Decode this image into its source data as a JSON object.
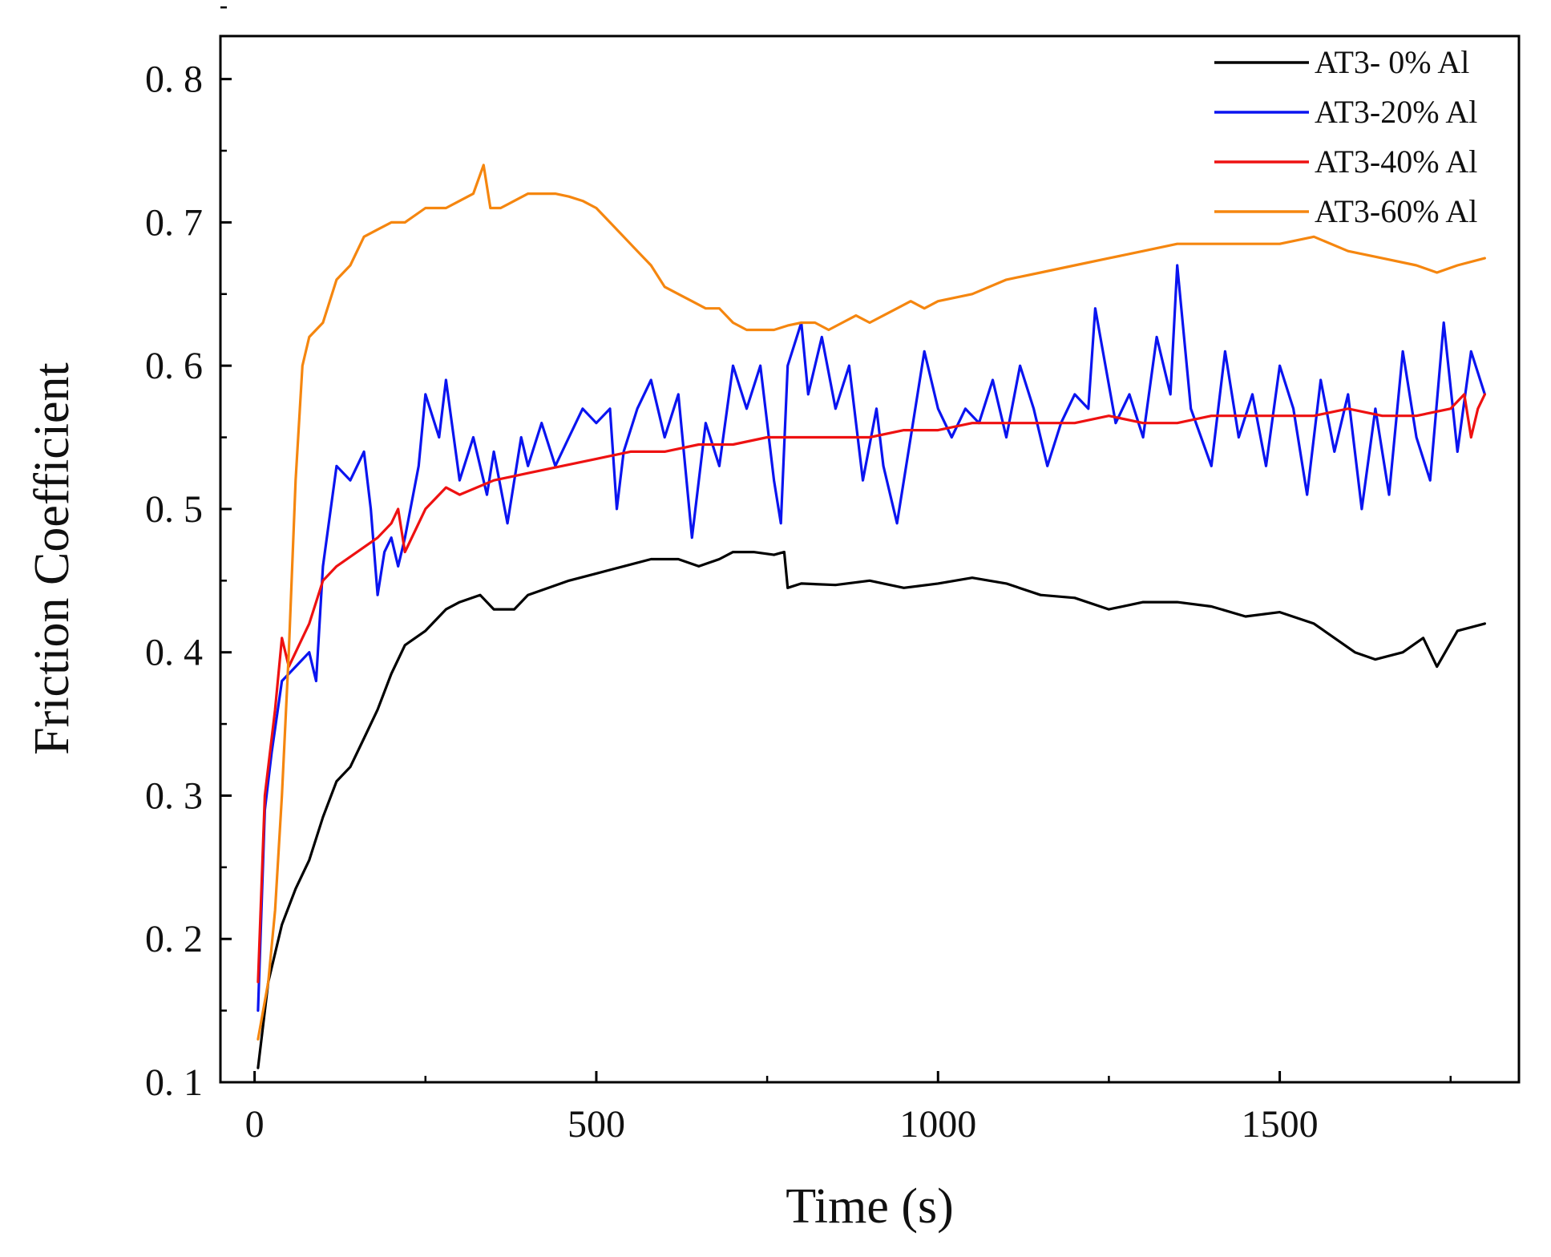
{
  "chart_data": {
    "type": "line",
    "title": "",
    "xlabel": "Time (s)",
    "ylabel": "Friction Coefficient",
    "xlim": [
      -50,
      1850
    ],
    "ylim": [
      0.1,
      0.83
    ],
    "xticks": [
      0,
      500,
      1000,
      1500
    ],
    "xtick_labels": [
      "0",
      "500",
      "1000",
      "1500"
    ],
    "yticks": [
      0.1,
      0.2,
      0.3,
      0.4,
      0.5,
      0.6,
      0.7,
      0.8
    ],
    "ytick_labels": [
      "0. 1",
      "0. 2",
      "0. 3",
      "0. 4",
      "0. 5",
      "0. 6",
      "0. 7",
      "0. 8"
    ],
    "grid": false,
    "legend_position": "top-right",
    "series": [
      {
        "name": "AT3- 0% Al",
        "color": "#000000",
        "x": [
          5,
          20,
          40,
          60,
          80,
          100,
          120,
          140,
          160,
          180,
          200,
          220,
          250,
          280,
          300,
          330,
          350,
          380,
          400,
          430,
          460,
          500,
          540,
          580,
          620,
          650,
          680,
          700,
          730,
          760,
          775,
          780,
          800,
          850,
          900,
          950,
          1000,
          1050,
          1100,
          1150,
          1200,
          1250,
          1300,
          1350,
          1400,
          1450,
          1500,
          1550,
          1580,
          1610,
          1640,
          1680,
          1710,
          1730,
          1760,
          1800
        ],
        "y": [
          0.11,
          0.17,
          0.21,
          0.235,
          0.255,
          0.285,
          0.31,
          0.32,
          0.34,
          0.36,
          0.385,
          0.405,
          0.415,
          0.43,
          0.435,
          0.44,
          0.43,
          0.43,
          0.44,
          0.445,
          0.45,
          0.455,
          0.46,
          0.465,
          0.465,
          0.46,
          0.465,
          0.47,
          0.47,
          0.468,
          0.47,
          0.445,
          0.448,
          0.447,
          0.45,
          0.445,
          0.448,
          0.452,
          0.448,
          0.44,
          0.438,
          0.43,
          0.435,
          0.435,
          0.432,
          0.425,
          0.428,
          0.42,
          0.41,
          0.4,
          0.395,
          0.4,
          0.41,
          0.39,
          0.415,
          0.42
        ]
      },
      {
        "name": "AT3-20% Al",
        "color": "#0a14f0",
        "x": [
          5,
          15,
          25,
          40,
          60,
          80,
          90,
          100,
          120,
          140,
          160,
          170,
          180,
          190,
          200,
          210,
          220,
          240,
          250,
          270,
          280,
          300,
          320,
          340,
          350,
          370,
          390,
          400,
          420,
          440,
          460,
          480,
          500,
          520,
          530,
          540,
          560,
          580,
          600,
          620,
          640,
          660,
          680,
          700,
          720,
          740,
          760,
          770,
          780,
          800,
          810,
          830,
          850,
          870,
          890,
          910,
          920,
          940,
          960,
          980,
          1000,
          1020,
          1040,
          1060,
          1080,
          1100,
          1120,
          1140,
          1160,
          1180,
          1200,
          1220,
          1230,
          1260,
          1280,
          1300,
          1320,
          1340,
          1350,
          1370,
          1400,
          1420,
          1440,
          1460,
          1480,
          1500,
          1520,
          1540,
          1560,
          1580,
          1600,
          1620,
          1640,
          1660,
          1680,
          1700,
          1720,
          1740,
          1760,
          1780,
          1800
        ],
        "y": [
          0.15,
          0.29,
          0.33,
          0.38,
          0.39,
          0.4,
          0.38,
          0.46,
          0.53,
          0.52,
          0.54,
          0.5,
          0.44,
          0.47,
          0.48,
          0.46,
          0.48,
          0.53,
          0.58,
          0.55,
          0.59,
          0.52,
          0.55,
          0.51,
          0.54,
          0.49,
          0.55,
          0.53,
          0.56,
          0.53,
          0.55,
          0.57,
          0.56,
          0.57,
          0.5,
          0.54,
          0.57,
          0.59,
          0.55,
          0.58,
          0.48,
          0.56,
          0.53,
          0.6,
          0.57,
          0.6,
          0.52,
          0.49,
          0.6,
          0.63,
          0.58,
          0.62,
          0.57,
          0.6,
          0.52,
          0.57,
          0.53,
          0.49,
          0.55,
          0.61,
          0.57,
          0.55,
          0.57,
          0.56,
          0.59,
          0.55,
          0.6,
          0.57,
          0.53,
          0.56,
          0.58,
          0.57,
          0.64,
          0.56,
          0.58,
          0.55,
          0.62,
          0.58,
          0.67,
          0.57,
          0.53,
          0.61,
          0.55,
          0.58,
          0.53,
          0.6,
          0.57,
          0.51,
          0.59,
          0.54,
          0.58,
          0.5,
          0.57,
          0.51,
          0.61,
          0.55,
          0.52,
          0.63,
          0.54,
          0.61,
          0.58
        ]
      },
      {
        "name": "AT3-40% Al",
        "color": "#ee1111",
        "x": [
          5,
          15,
          30,
          40,
          50,
          60,
          80,
          100,
          120,
          150,
          180,
          200,
          210,
          220,
          250,
          280,
          300,
          350,
          400,
          450,
          500,
          550,
          600,
          650,
          700,
          750,
          800,
          850,
          900,
          950,
          1000,
          1050,
          1100,
          1150,
          1200,
          1250,
          1300,
          1350,
          1400,
          1450,
          1500,
          1550,
          1600,
          1650,
          1700,
          1750,
          1770,
          1780,
          1790,
          1800
        ],
        "y": [
          0.17,
          0.3,
          0.36,
          0.41,
          0.39,
          0.4,
          0.42,
          0.45,
          0.46,
          0.47,
          0.48,
          0.49,
          0.5,
          0.47,
          0.5,
          0.515,
          0.51,
          0.52,
          0.525,
          0.53,
          0.535,
          0.54,
          0.54,
          0.545,
          0.545,
          0.55,
          0.55,
          0.55,
          0.55,
          0.555,
          0.555,
          0.56,
          0.56,
          0.56,
          0.56,
          0.565,
          0.56,
          0.56,
          0.565,
          0.565,
          0.565,
          0.565,
          0.57,
          0.565,
          0.565,
          0.57,
          0.58,
          0.55,
          0.57,
          0.58
        ]
      },
      {
        "name": "AT3-60% Al",
        "color": "#f5860f",
        "x": [
          5,
          20,
          30,
          40,
          50,
          60,
          70,
          80,
          100,
          120,
          140,
          160,
          180,
          200,
          220,
          250,
          280,
          300,
          320,
          335,
          345,
          360,
          380,
          400,
          420,
          440,
          460,
          480,
          500,
          520,
          540,
          560,
          580,
          600,
          620,
          640,
          660,
          680,
          700,
          720,
          740,
          760,
          780,
          800,
          820,
          840,
          860,
          880,
          900,
          920,
          940,
          960,
          980,
          1000,
          1050,
          1100,
          1150,
          1200,
          1250,
          1300,
          1350,
          1400,
          1450,
          1500,
          1550,
          1600,
          1650,
          1700,
          1730,
          1760,
          1800
        ],
        "y": [
          0.13,
          0.17,
          0.22,
          0.3,
          0.4,
          0.52,
          0.6,
          0.62,
          0.63,
          0.66,
          0.67,
          0.69,
          0.695,
          0.7,
          0.7,
          0.71,
          0.71,
          0.715,
          0.72,
          0.74,
          0.71,
          0.71,
          0.715,
          0.72,
          0.72,
          0.72,
          0.718,
          0.715,
          0.71,
          0.7,
          0.69,
          0.68,
          0.67,
          0.655,
          0.65,
          0.645,
          0.64,
          0.64,
          0.63,
          0.625,
          0.625,
          0.625,
          0.628,
          0.63,
          0.63,
          0.625,
          0.63,
          0.635,
          0.63,
          0.635,
          0.64,
          0.645,
          0.64,
          0.645,
          0.65,
          0.66,
          0.665,
          0.67,
          0.675,
          0.68,
          0.685,
          0.685,
          0.685,
          0.685,
          0.69,
          0.68,
          0.675,
          0.67,
          0.665,
          0.67,
          0.675
        ]
      }
    ]
  }
}
